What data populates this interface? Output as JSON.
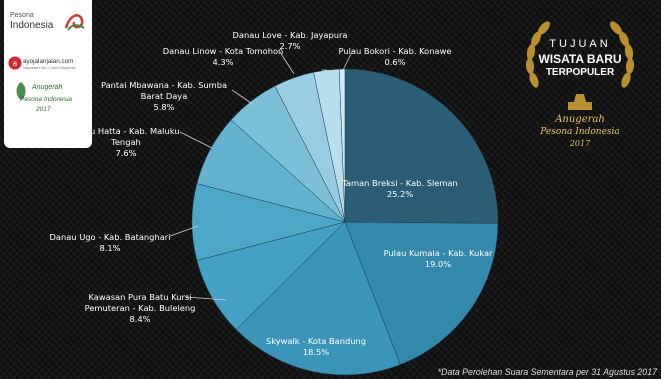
{
  "branding": {
    "logo1_line1": "Pesona",
    "logo1_line2": "Indonesia",
    "logo2": "ayojalanjalan.com",
    "logo2_tagline": "Indonesia's No.1 Travel Magazine",
    "logo3_line1": "Anugerah",
    "logo3_line2": "Pesona Indonesia",
    "logo3_line3": "2017"
  },
  "award": {
    "line1": "TUJUAN",
    "line2": "WISATA BARU",
    "line3": "TERPOPULER",
    "line4": "Anugerah",
    "line5": "Pesona Indonesia",
    "line6": "2017"
  },
  "footnote": "*Data Perolehan Suara Sementara per 31 Agustus 2017",
  "chart_data": {
    "type": "pie",
    "title": "",
    "slices": [
      {
        "label": "Taman Breksi - Kab. Sleman",
        "value": 25.2,
        "display": "25.2%",
        "color": "#2b5e75"
      },
      {
        "label": "Pulau Kumala - Kab. Kukar",
        "value": 19.0,
        "display": "19.0%",
        "color": "#3388ab"
      },
      {
        "label": "Skywalk - Kota Bandung",
        "value": 18.5,
        "display": "18.5%",
        "color": "#3b94ba"
      },
      {
        "label": "Kawasan Pura Batu Kursi Pemuteran - Kab. Buleleng",
        "value": 8.4,
        "display": "8.4%",
        "color": "#44a0c4"
      },
      {
        "label": "Danau Ugo - Kab. Batanghari",
        "value": 8.1,
        "display": "8.1%",
        "color": "#4da8c8"
      },
      {
        "label": "Pulau Hatta - Kab. Maluku Tengah",
        "value": 7.6,
        "display": "7.6%",
        "color": "#62b2cf"
      },
      {
        "label": "Pantai Mbawana - Kab. Sumba Barat Daya",
        "value": 5.8,
        "display": "5.8%",
        "color": "#7cbfd8"
      },
      {
        "label": "Danau Linow - Kota Tomohon",
        "value": 4.3,
        "display": "4.3%",
        "color": "#99cee2"
      },
      {
        "label": "Danau Love - Kab. Jayapura",
        "value": 2.7,
        "display": "2.7%",
        "color": "#b8deec"
      },
      {
        "label": "Pulau Bokori - Kab. Konawe",
        "value": 0.6,
        "display": "0.6%",
        "color": "#d4eaf3"
      }
    ]
  }
}
